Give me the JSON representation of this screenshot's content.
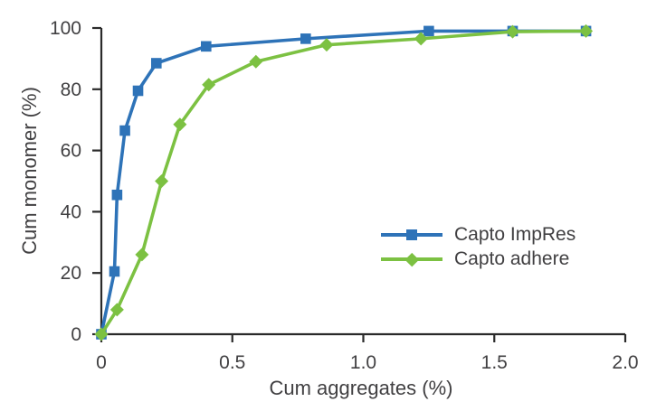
{
  "figure": {
    "background": "#ffffff",
    "axis_color": "#2a2a2a",
    "text_color": "#414042"
  },
  "chart_data": {
    "type": "line",
    "title": "",
    "xlabel": "Cum aggregates (%)",
    "ylabel": "Cum monomer (%)",
    "xlim": [
      0,
      2.0
    ],
    "ylim": [
      0,
      100
    ],
    "x_ticks": [
      0,
      0.5,
      1.0,
      1.5,
      2.0
    ],
    "x_tick_labels": [
      "0",
      "0.5",
      "1.0",
      "1.5",
      "2.0"
    ],
    "y_ticks": [
      0,
      20,
      40,
      60,
      80,
      100
    ],
    "y_tick_labels": [
      "0",
      "20",
      "40",
      "60",
      "80",
      "100"
    ],
    "grid": false,
    "legend_position": "center-right",
    "series": [
      {
        "name": "Capto ImpRes",
        "color": "#2e73b8",
        "marker": "square",
        "x": [
          0,
          0.05,
          0.06,
          0.09,
          0.14,
          0.21,
          0.4,
          0.78,
          1.25,
          1.57,
          1.85
        ],
        "y": [
          0,
          20.5,
          45.5,
          66.5,
          79.5,
          88.5,
          94,
          96.5,
          99,
          99,
          99
        ]
      },
      {
        "name": "Capto adhere",
        "color": "#7cc142",
        "marker": "diamond",
        "x": [
          0,
          0.06,
          0.155,
          0.23,
          0.3,
          0.41,
          0.59,
          0.86,
          1.22,
          1.57,
          1.85
        ],
        "y": [
          0,
          8,
          26,
          50,
          68.5,
          81.5,
          89,
          94.5,
          96.5,
          98.8,
          99
        ]
      }
    ]
  }
}
